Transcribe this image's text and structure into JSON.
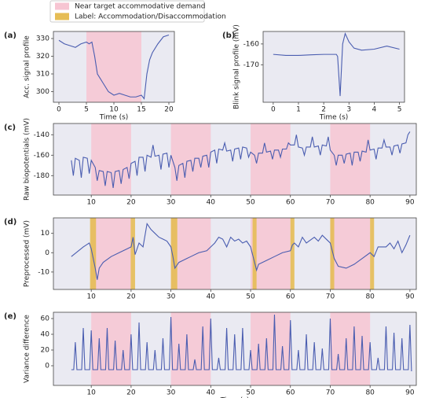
{
  "legend": [
    {
      "label": "Near target accommodative demand",
      "color": "#f7c5d2"
    },
    {
      "label": "Label: Accommodation/Disaccommodation",
      "color": "#e6bd55"
    }
  ],
  "chart_data": [
    {
      "type": "line",
      "panel_label": "(a)",
      "ylabel": "Acc. signal profile",
      "xlabel": "Time (s)",
      "color": "#4a5db0",
      "x": [
        0,
        1,
        2,
        3,
        4,
        5,
        5.5,
        6,
        6.5,
        7,
        8,
        9,
        10,
        11,
        12,
        13,
        14,
        15,
        15.5,
        16,
        16.5,
        17,
        18,
        19,
        20
      ],
      "values": [
        329,
        327,
        326,
        325,
        327,
        328,
        327,
        328,
        320,
        310,
        305,
        300,
        298,
        299,
        298,
        297,
        297,
        298,
        296,
        310,
        318,
        322,
        327,
        331,
        332
      ],
      "xlim": [
        -1,
        21
      ],
      "ylim": [
        294,
        334
      ],
      "xticks": [
        0,
        5,
        10,
        15,
        20
      ],
      "yticks": [
        300,
        310,
        320,
        330
      ],
      "shaded": [
        [
          5,
          15
        ]
      ],
      "labeled": []
    },
    {
      "type": "line",
      "panel_label": "(b)",
      "ylabel": "Blink signal profile (mV)",
      "xlabel": "Time (s)",
      "color": "#4a5db0",
      "x": [
        0,
        0.5,
        1,
        1.5,
        2,
        2.5,
        2.55,
        2.65,
        2.75,
        2.85,
        3.0,
        3.2,
        3.5,
        4,
        4.5,
        5
      ],
      "values": [
        -165,
        -165.5,
        -165.5,
        -165.2,
        -165,
        -165,
        -166,
        -185,
        -160,
        -155,
        -159,
        -162,
        -163,
        -162.5,
        -161,
        -162.5
      ],
      "xlim": [
        -0.4,
        5.2
      ],
      "ylim": [
        -188,
        -154
      ],
      "xticks": [
        0,
        1,
        2,
        3,
        4,
        5
      ],
      "yticks": [
        -170,
        -160
      ],
      "shaded": [],
      "labeled": []
    },
    {
      "type": "line",
      "panel_label": "(c)",
      "ylabel": "Raw biopotentials (mV)",
      "color": "#4a5db0",
      "x": [
        5,
        5.5,
        6,
        7,
        7.5,
        8,
        9,
        9.5,
        10,
        11,
        11.5,
        12,
        13,
        13.5,
        14,
        15,
        15.5,
        16,
        17,
        17.5,
        18,
        19,
        19.5,
        20,
        21,
        21.5,
        22,
        23,
        23.5,
        24,
        25,
        25.5,
        26,
        27,
        27.5,
        28,
        29,
        29.5,
        30,
        31,
        31.5,
        32,
        33,
        33.5,
        34,
        35,
        35.5,
        36,
        37,
        37.5,
        38,
        39,
        39.5,
        40,
        41,
        41.5,
        42,
        43,
        43.5,
        44,
        45,
        45.5,
        46,
        47,
        47.5,
        48,
        49,
        49.5,
        50,
        51,
        51.5,
        52,
        53,
        53.5,
        54,
        55,
        55.5,
        56,
        57,
        57.5,
        58,
        59,
        59.5,
        60,
        61,
        61.5,
        62,
        63,
        63.5,
        64,
        65,
        65.5,
        66,
        67,
        67.5,
        68,
        69,
        69.5,
        70,
        71,
        71.5,
        72,
        73,
        73.5,
        74,
        75,
        75.5,
        76,
        77,
        77.5,
        78,
        79,
        79.5,
        80,
        81,
        81.5,
        82,
        83,
        83.5,
        84,
        85,
        85.5,
        86,
        87,
        87.5,
        88,
        89,
        89.5,
        90
      ],
      "values": [
        -165,
        -180,
        -163,
        -165,
        -182,
        -162,
        -163,
        -178,
        -165,
        -172,
        -185,
        -175,
        -176,
        -190,
        -176,
        -177,
        -192,
        -176,
        -175,
        -188,
        -174,
        -172,
        -183,
        -168,
        -166,
        -180,
        -162,
        -162,
        -176,
        -160,
        -162,
        -150,
        -161,
        -160,
        -174,
        -159,
        -158,
        -172,
        -160,
        -172,
        -185,
        -170,
        -168,
        -182,
        -166,
        -165,
        -176,
        -163,
        -163,
        -172,
        -161,
        -160,
        -172,
        -157,
        -155,
        -168,
        -154,
        -155,
        -148,
        -156,
        -155,
        -166,
        -154,
        -153,
        -164,
        -152,
        -153,
        -162,
        -157,
        -160,
        -168,
        -158,
        -158,
        -148,
        -157,
        -156,
        -164,
        -155,
        -155,
        -162,
        -154,
        -154,
        -148,
        -150,
        -150,
        -140,
        -152,
        -153,
        -160,
        -152,
        -152,
        -142,
        -152,
        -151,
        -160,
        -150,
        -151,
        -142,
        -155,
        -160,
        -170,
        -160,
        -160,
        -168,
        -159,
        -158,
        -170,
        -157,
        -157,
        -166,
        -156,
        -157,
        -145,
        -155,
        -154,
        -164,
        -153,
        -153,
        -145,
        -152,
        -152,
        -160,
        -151,
        -150,
        -158,
        -149,
        -148,
        -140,
        -137
      ],
      "xlim": [
        0.5,
        91.6
      ],
      "ylim": [
        -199,
        -129
      ],
      "xticks": [
        10,
        20,
        30,
        40,
        50,
        60,
        70,
        80,
        90
      ],
      "yticks": [
        -180,
        -160,
        -140
      ],
      "shaded": [
        [
          10,
          20
        ],
        [
          30,
          40
        ],
        [
          50,
          60
        ],
        [
          70,
          80
        ]
      ],
      "labeled": []
    },
    {
      "type": "line",
      "panel_label": "(d)",
      "ylabel": "Preprocessed (mV)",
      "color": "#4a5db0",
      "x": [
        5,
        8,
        9.5,
        10,
        11,
        11.5,
        12,
        13,
        15,
        17,
        19,
        20,
        20.5,
        21,
        22,
        23,
        24,
        25,
        26,
        27,
        28,
        29,
        30,
        30.5,
        31,
        32,
        33,
        34,
        35,
        37,
        39,
        40,
        41,
        42,
        43,
        44,
        45,
        46,
        47,
        48,
        49,
        50,
        51,
        51.5,
        52,
        54,
        56,
        58,
        60,
        60.5,
        61,
        62,
        63,
        64,
        66,
        67,
        68,
        69,
        70,
        71,
        72,
        74,
        76,
        78,
        80,
        81,
        82,
        84,
        85,
        86,
        87,
        88,
        89,
        90
      ],
      "values": [
        -2,
        3,
        5,
        2,
        -8,
        -14,
        -8,
        -5,
        -2,
        0,
        2,
        3,
        8,
        -1,
        5,
        3,
        15,
        12,
        10,
        8,
        7,
        6,
        3,
        -2,
        -8,
        -5,
        -4,
        -3,
        -2,
        0,
        1,
        3,
        5,
        8,
        7,
        3,
        8,
        6,
        7,
        5,
        6,
        3,
        -5,
        -9,
        -6,
        -4,
        -2,
        0,
        1,
        4,
        5,
        3,
        8,
        5,
        8,
        6,
        9,
        7,
        5,
        -3,
        -7,
        -8,
        -6,
        -3,
        0,
        -2,
        3,
        3,
        5,
        2,
        6,
        0,
        4,
        9
      ],
      "xlim": [
        0.5,
        91.6
      ],
      "ylim": [
        -19,
        18
      ],
      "xticks": [
        10,
        20,
        30,
        40,
        50,
        60,
        70,
        80,
        90
      ],
      "yticks": [
        -10,
        0,
        10
      ],
      "shaded": [
        [
          10,
          20
        ],
        [
          30,
          40
        ],
        [
          50,
          60
        ],
        [
          70,
          80
        ]
      ],
      "labeled": [
        [
          9.7,
          11.2
        ],
        [
          19.9,
          21
        ],
        [
          30,
          31.6
        ],
        [
          50.5,
          51.5
        ],
        [
          60,
          61
        ],
        [
          70,
          71
        ],
        [
          80,
          81
        ]
      ]
    },
    {
      "type": "line",
      "panel_label": "(e)",
      "ylabel": "Variance difference",
      "xlabel": "Time (s)",
      "color": "#4a5db0",
      "x": [
        5,
        5.6,
        6,
        6.4,
        7.6,
        8,
        8.4,
        9.6,
        10,
        10.4,
        11.6,
        12,
        12.4,
        13.6,
        14,
        14.4,
        15.6,
        16,
        16.4,
        17.6,
        18,
        18.4,
        19.6,
        20,
        20.4,
        21.6,
        22,
        22.4,
        23.6,
        24,
        24.4,
        25.6,
        26,
        26.4,
        27.6,
        28,
        28.4,
        29.6,
        30,
        30.4,
        31.6,
        32,
        32.4,
        33.6,
        34,
        34.4,
        35.6,
        36,
        36.4,
        37.6,
        38,
        38.4,
        39.6,
        40,
        40.4,
        41.6,
        42,
        42.4,
        43.6,
        44,
        44.4,
        45.6,
        46,
        46.4,
        47.6,
        48,
        48.4,
        49.6,
        50,
        50.4,
        51.6,
        52,
        52.4,
        53.6,
        54,
        54.4,
        55.6,
        56,
        56.4,
        57.6,
        58,
        58.4,
        59.6,
        60,
        60.4,
        61.6,
        62,
        62.4,
        63.6,
        64,
        64.4,
        65.6,
        66,
        66.4,
        67.6,
        68,
        68.4,
        69.6,
        70,
        70.4,
        71.6,
        72,
        72.4,
        73.6,
        74,
        74.4,
        75.6,
        76,
        76.4,
        77.6,
        78,
        78.4,
        79.6,
        80,
        80.4,
        81.6,
        82,
        82.4,
        83.6,
        84,
        84.4,
        85.6,
        86,
        86.4,
        87.6,
        88,
        88.4,
        89.6,
        90,
        90.4
      ],
      "values": [
        -5,
        -5,
        30,
        -5,
        -5,
        48,
        -5,
        -5,
        45,
        -5,
        -5,
        35,
        -5,
        -5,
        48,
        -5,
        -5,
        32,
        -5,
        -5,
        20,
        -5,
        -5,
        40,
        -5,
        -5,
        55,
        -5,
        -5,
        30,
        -5,
        -5,
        20,
        -5,
        -5,
        35,
        -5,
        -5,
        62,
        -5,
        -5,
        28,
        -5,
        -5,
        40,
        -5,
        -5,
        8,
        -5,
        -5,
        50,
        -5,
        -5,
        60,
        -5,
        -5,
        10,
        -5,
        -5,
        48,
        -5,
        -5,
        40,
        -5,
        -5,
        48,
        -5,
        -5,
        20,
        -5,
        -5,
        28,
        -5,
        -5,
        35,
        -5,
        -5,
        65,
        -5,
        -5,
        25,
        -5,
        -5,
        58,
        -5,
        -5,
        20,
        -5,
        -5,
        40,
        -5,
        -5,
        30,
        -5,
        -5,
        22,
        -5,
        -5,
        60,
        -5,
        -5,
        15,
        -5,
        -5,
        35,
        -5,
        -5,
        50,
        -5,
        -5,
        38,
        -5,
        -5,
        30,
        -5,
        -5,
        10,
        -5,
        -5,
        50,
        -5,
        -5,
        42,
        -5,
        -5,
        35,
        -5,
        -5,
        52,
        -7
      ],
      "xlim": [
        0.5,
        91.6
      ],
      "ylim": [
        -25,
        68
      ],
      "xticks": [
        10,
        20,
        30,
        40,
        50,
        60,
        70,
        80,
        90
      ],
      "yticks": [
        0,
        20,
        40,
        60
      ],
      "shaded": [
        [
          10,
          20
        ],
        [
          30,
          40
        ],
        [
          50,
          60
        ],
        [
          70,
          80
        ]
      ],
      "labeled": []
    }
  ]
}
